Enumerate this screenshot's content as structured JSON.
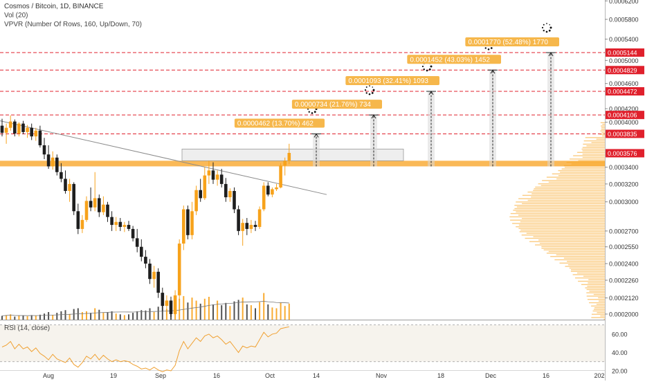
{
  "header": {
    "symbol_line": "Cosmos / Bitcoin, 1D, BINANCE",
    "volume_study": "Vol (20)",
    "vpvr_study": "VPVR (Number Of Rows, 160, Up/Down, 70)",
    "rsi_study": "RSI (14, close)"
  },
  "colors": {
    "up_candle": "#f7a21b",
    "down_candle": "#1e1e1e",
    "target_label_bg": "#f6b74b",
    "level_label_bg": "#e0202c",
    "dashed_level": "#e0202c",
    "support_zone": "#f9ad3a",
    "trendline": "#8a8a8a",
    "rsi_line": "#f0a030"
  },
  "chart_data": [
    {
      "type": "candlestick",
      "title": "Cosmos / Bitcoin, 1D, BINANCE",
      "yscale": "log",
      "ylim": [
        0.000196,
        0.000622
      ],
      "xlabel": "",
      "ylabel": "",
      "x_ticks": [
        "Aug",
        "19",
        "Sep",
        "16",
        "Oct",
        "14",
        "Nov",
        "18",
        "Dec",
        "16",
        "202"
      ],
      "y_ticks": [
        "0.0006200",
        "0.0005800",
        "0.0005400",
        "0.0005000",
        "0.0004600",
        "0.0004200",
        "0.0004000",
        "0.0003400",
        "0.0003200",
        "0.0003000",
        "0.0002700",
        "0.0002550",
        "0.0002400",
        "0.0002260",
        "0.0002120",
        "0.0002000"
      ],
      "current_price": "0.0003576",
      "levels": [
        {
          "label": "0.0005144",
          "value": 0.0005144
        },
        {
          "label": "0.0004829",
          "value": 0.0004829
        },
        {
          "label": "0.0004472",
          "value": 0.0004472
        },
        {
          "label": "0.0004106",
          "value": 0.0004106
        },
        {
          "label": "0.0003835",
          "value": 0.0003835
        }
      ],
      "targets": [
        {
          "label": "0.0000462 (13.70%) 462",
          "value": 0.0003835
        },
        {
          "label": "0.0000734 (21.76%) 734",
          "value": 0.0004106
        },
        {
          "label": "0.0001093 (32.41%) 1093",
          "value": 0.0004472
        },
        {
          "label": "0.0001452 (43.03%) 1452",
          "value": 0.0004829
        },
        {
          "label": "0.0001770 (52.48%) 1770",
          "value": 0.0005144
        }
      ],
      "support_zone": [
        0.000341,
        0.000348
      ],
      "resistance_box": [
        0.000348,
        0.000363
      ],
      "trendline": [
        {
          "from": 0.0004,
          "to": 0.00031
        }
      ],
      "candles": [
        {
          "o": 0.000395,
          "h": 0.000405,
          "l": 0.00038,
          "c": 0.000385
        },
        {
          "o": 0.000385,
          "h": 0.000398,
          "l": 0.00037,
          "c": 0.000392
        },
        {
          "o": 0.000392,
          "h": 0.00041,
          "l": 0.000388,
          "c": 0.000401
        },
        {
          "o": 0.000401,
          "h": 0.000404,
          "l": 0.00038,
          "c": 0.000384
        },
        {
          "o": 0.000384,
          "h": 0.0004,
          "l": 0.00038,
          "c": 0.000398
        },
        {
          "o": 0.000398,
          "h": 0.000402,
          "l": 0.000383,
          "c": 0.000386
        },
        {
          "o": 0.000386,
          "h": 0.000396,
          "l": 0.000378,
          "c": 0.000392
        },
        {
          "o": 0.000392,
          "h": 0.000398,
          "l": 0.000375,
          "c": 0.00038
        },
        {
          "o": 0.00038,
          "h": 0.000392,
          "l": 0.000374,
          "c": 0.000388
        },
        {
          "o": 0.000388,
          "h": 0.000395,
          "l": 0.000365,
          "c": 0.000368
        },
        {
          "o": 0.000368,
          "h": 0.000378,
          "l": 0.00035,
          "c": 0.000356
        },
        {
          "o": 0.000356,
          "h": 0.000368,
          "l": 0.000338,
          "c": 0.000341
        },
        {
          "o": 0.000341,
          "h": 0.00036,
          "l": 0.000337,
          "c": 0.000352
        },
        {
          "o": 0.000352,
          "h": 0.000356,
          "l": 0.00033,
          "c": 0.000334
        },
        {
          "o": 0.000334,
          "h": 0.000345,
          "l": 0.000322,
          "c": 0.000326
        },
        {
          "o": 0.000326,
          "h": 0.000336,
          "l": 0.000309,
          "c": 0.000312
        },
        {
          "o": 0.000312,
          "h": 0.000326,
          "l": 0.0003,
          "c": 0.00032
        },
        {
          "o": 0.00032,
          "h": 0.000322,
          "l": 0.000286,
          "c": 0.00029
        },
        {
          "o": 0.00029,
          "h": 0.000298,
          "l": 0.000267,
          "c": 0.000272
        },
        {
          "o": 0.000272,
          "h": 0.000286,
          "l": 0.000268,
          "c": 0.000281
        },
        {
          "o": 0.000281,
          "h": 0.000306,
          "l": 0.000279,
          "c": 0.000301
        },
        {
          "o": 0.000301,
          "h": 0.000316,
          "l": 0.00029,
          "c": 0.000294
        },
        {
          "o": 0.000294,
          "h": 0.000334,
          "l": 0.00029,
          "c": 0.000304
        },
        {
          "o": 0.000304,
          "h": 0.000308,
          "l": 0.000284,
          "c": 0.000289
        },
        {
          "o": 0.000289,
          "h": 0.000306,
          "l": 0.000286,
          "c": 0.000297
        },
        {
          "o": 0.000297,
          "h": 0.0003,
          "l": 0.000279,
          "c": 0.000284
        },
        {
          "o": 0.000284,
          "h": 0.00029,
          "l": 0.00027,
          "c": 0.000276
        },
        {
          "o": 0.000276,
          "h": 0.000284,
          "l": 0.00027,
          "c": 0.000279
        },
        {
          "o": 0.000279,
          "h": 0.000283,
          "l": 0.00027,
          "c": 0.000274
        },
        {
          "o": 0.000274,
          "h": 0.000279,
          "l": 0.000269,
          "c": 0.000276
        },
        {
          "o": 0.000276,
          "h": 0.00028,
          "l": 0.00027,
          "c": 0.000272
        },
        {
          "o": 0.000272,
          "h": 0.000275,
          "l": 0.00026,
          "c": 0.000263
        },
        {
          "o": 0.000263,
          "h": 0.000272,
          "l": 0.00025,
          "c": 0.000255
        },
        {
          "o": 0.000255,
          "h": 0.000262,
          "l": 0.000242,
          "c": 0.000246
        },
        {
          "o": 0.000246,
          "h": 0.000252,
          "l": 0.000236,
          "c": 0.00024
        },
        {
          "o": 0.00024,
          "h": 0.000244,
          "l": 0.000223,
          "c": 0.000227
        },
        {
          "o": 0.000227,
          "h": 0.000238,
          "l": 0.00022,
          "c": 0.000233
        },
        {
          "o": 0.000233,
          "h": 0.000236,
          "l": 0.000212,
          "c": 0.000216
        },
        {
          "o": 0.000216,
          "h": 0.00022,
          "l": 0.000202,
          "c": 0.000206
        },
        {
          "o": 0.000206,
          "h": 0.000214,
          "l": 0.000199,
          "c": 0.00021
        },
        {
          "o": 0.00021,
          "h": 0.000213,
          "l": 0.000198,
          "c": 0.0002
        },
        {
          "o": 0.0002,
          "h": 0.000218,
          "l": 0.000199,
          "c": 0.000214
        },
        {
          "o": 0.000214,
          "h": 0.000262,
          "l": 0.00021,
          "c": 0.000258
        },
        {
          "o": 0.000258,
          "h": 0.000296,
          "l": 0.000252,
          "c": 0.000292
        },
        {
          "o": 0.000292,
          "h": 0.000296,
          "l": 0.000262,
          "c": 0.000266
        },
        {
          "o": 0.000266,
          "h": 0.0003,
          "l": 0.000262,
          "c": 0.00029
        },
        {
          "o": 0.00029,
          "h": 0.000318,
          "l": 0.000286,
          "c": 0.000313
        },
        {
          "o": 0.000313,
          "h": 0.000326,
          "l": 0.0003,
          "c": 0.000304
        },
        {
          "o": 0.000304,
          "h": 0.00034,
          "l": 0.000302,
          "c": 0.00033
        },
        {
          "o": 0.00033,
          "h": 0.000348,
          "l": 0.00032,
          "c": 0.000336
        },
        {
          "o": 0.000336,
          "h": 0.000346,
          "l": 0.00032,
          "c": 0.000325
        },
        {
          "o": 0.000325,
          "h": 0.000336,
          "l": 0.000318,
          "c": 0.000331
        },
        {
          "o": 0.000331,
          "h": 0.000338,
          "l": 0.000316,
          "c": 0.00032
        },
        {
          "o": 0.00032,
          "h": 0.000327,
          "l": 0.0003,
          "c": 0.000305
        },
        {
          "o": 0.000305,
          "h": 0.000315,
          "l": 0.0003,
          "c": 0.000312
        },
        {
          "o": 0.000312,
          "h": 0.000316,
          "l": 0.000288,
          "c": 0.000292
        },
        {
          "o": 0.000292,
          "h": 0.000296,
          "l": 0.000266,
          "c": 0.00027
        },
        {
          "o": 0.00027,
          "h": 0.000282,
          "l": 0.000256,
          "c": 0.000278
        },
        {
          "o": 0.000278,
          "h": 0.000283,
          "l": 0.000266,
          "c": 0.000272
        },
        {
          "o": 0.000272,
          "h": 0.000281,
          "l": 0.000268,
          "c": 0.000276
        },
        {
          "o": 0.000276,
          "h": 0.00028,
          "l": 0.00027,
          "c": 0.000274
        },
        {
          "o": 0.000274,
          "h": 0.000295,
          "l": 0.000272,
          "c": 0.000292
        },
        {
          "o": 0.000292,
          "h": 0.000322,
          "l": 0.00029,
          "c": 0.000318
        },
        {
          "o": 0.000318,
          "h": 0.000322,
          "l": 0.000306,
          "c": 0.000308
        },
        {
          "o": 0.000308,
          "h": 0.000316,
          "l": 0.000305,
          "c": 0.000314
        },
        {
          "o": 0.000314,
          "h": 0.00032,
          "l": 0.000312,
          "c": 0.000316
        },
        {
          "o": 0.000316,
          "h": 0.000345,
          "l": 0.000315,
          "c": 0.000342
        },
        {
          "o": 0.000342,
          "h": 0.000352,
          "l": 0.00033,
          "c": 0.000348
        },
        {
          "o": 0.000348,
          "h": 0.00037,
          "l": 0.000344,
          "c": 0.000358
        }
      ],
      "volume": [
        0.1,
        0.12,
        0.14,
        0.08,
        0.1,
        0.11,
        0.09,
        0.12,
        0.1,
        0.13,
        0.16,
        0.2,
        0.12,
        0.18,
        0.22,
        0.25,
        0.15,
        0.28,
        0.3,
        0.2,
        0.22,
        0.18,
        0.3,
        0.26,
        0.18,
        0.2,
        0.22,
        0.16,
        0.14,
        0.12,
        0.14,
        0.18,
        0.22,
        0.25,
        0.24,
        0.3,
        0.2,
        0.34,
        0.4,
        0.28,
        0.32,
        0.36,
        0.55,
        0.62,
        0.45,
        0.58,
        0.5,
        0.42,
        0.55,
        0.6,
        0.4,
        0.5,
        0.38,
        0.44,
        0.36,
        0.48,
        0.52,
        0.58,
        0.4,
        0.38,
        0.3,
        0.46,
        0.7,
        0.4,
        0.32,
        0.3,
        0.45,
        0.36,
        0.42
      ],
      "rsi": {
        "ylim": [
          20,
          72
        ],
        "ticks": [
          "60.00",
          "40.00",
          "20.00"
        ],
        "values": [
          46,
          48,
          52,
          44,
          49,
          44,
          46,
          41,
          45,
          39,
          36,
          32,
          38,
          33,
          31,
          29,
          34,
          27,
          24,
          29,
          36,
          33,
          38,
          32,
          37,
          33,
          30,
          32,
          30,
          31,
          30,
          27,
          25,
          22,
          23,
          21,
          24,
          21,
          19,
          21,
          20,
          26,
          42,
          52,
          44,
          50,
          56,
          52,
          58,
          60,
          56,
          58,
          54,
          49,
          52,
          46,
          40,
          47,
          45,
          47,
          46,
          54,
          62,
          57,
          60,
          61,
          66,
          67,
          68
        ]
      }
    }
  ]
}
